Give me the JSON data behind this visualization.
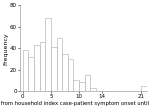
{
  "title": "",
  "xlabel": "Days from household index case-patient symptom onset until prophylaxis",
  "ylabel": "Frequency",
  "bar_values": [
    38,
    32,
    43,
    46,
    68,
    41,
    50,
    35,
    30,
    10,
    8,
    15,
    3,
    0,
    0,
    0,
    0,
    0,
    0,
    0,
    0,
    5
  ],
  "x_start": 0,
  "bar_width": 1,
  "xticks": [
    0,
    5,
    10,
    14,
    21
  ],
  "xtick_labels": [
    "0",
    "5",
    "10",
    "14",
    "21"
  ],
  "yticks": [
    0,
    20,
    40,
    60,
    80
  ],
  "ylim": [
    0,
    80
  ],
  "xlim": [
    -0.5,
    22
  ],
  "facecolor": "white",
  "bar_color": "white",
  "bar_edgecolor": "#aaaaaa",
  "xlabel_fontsize": 3.8,
  "ylabel_fontsize": 4.5,
  "tick_fontsize": 4.0,
  "linewidth": 0.4
}
